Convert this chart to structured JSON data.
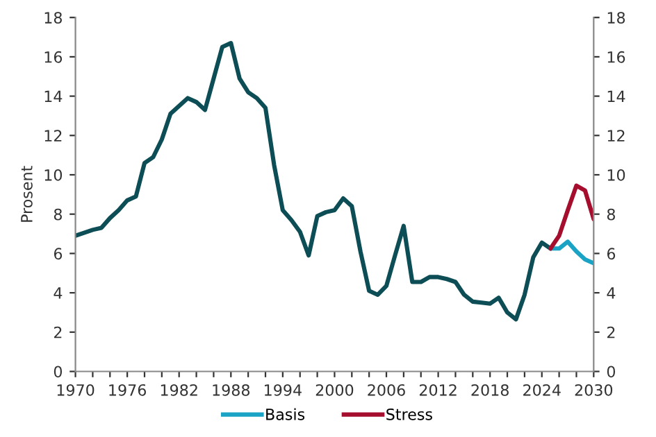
{
  "chart_data": {
    "type": "line",
    "ylabel": "Prosent",
    "series": [
      {
        "color": "#0d4d55",
        "x": [
          1970,
          1971,
          1972,
          1973,
          1974,
          1975,
          1976,
          1977,
          1978,
          1979,
          1980,
          1981,
          1982,
          1983,
          1984,
          1985,
          1986,
          1987,
          1988,
          1989,
          1990,
          1991,
          1992,
          1993,
          1994,
          1995,
          1996,
          1997,
          1998,
          1999,
          2000,
          2001,
          2002,
          2003,
          2004,
          2005,
          2006,
          2007,
          2008,
          2009,
          2010,
          2011,
          2012,
          2013,
          2014,
          2015,
          2016,
          2017,
          2018,
          2019,
          2020,
          2021,
          2022,
          2023,
          2024,
          2025
        ],
        "values": [
          6.9,
          7.05,
          7.2,
          7.3,
          7.8,
          8.2,
          8.7,
          8.9,
          10.6,
          10.9,
          11.8,
          13.1,
          13.5,
          13.9,
          13.7,
          13.3,
          14.9,
          16.5,
          16.7,
          14.9,
          14.2,
          13.9,
          13.4,
          10.5,
          8.2,
          7.7,
          7.1,
          5.9,
          7.9,
          8.1,
          8.2,
          8.8,
          8.4,
          6.1,
          4.1,
          3.9,
          4.35,
          5.9,
          7.4,
          4.55,
          4.55,
          4.8,
          4.8,
          4.7,
          4.55,
          3.9,
          3.55,
          3.5,
          3.45,
          3.75,
          3.0,
          2.65,
          3.9,
          5.8,
          6.55,
          6.25
        ]
      },
      {
        "name": "Basis",
        "color": "#1aa3c4",
        "x": [
          2025,
          2026,
          2027,
          2028,
          2029,
          2030
        ],
        "values": [
          6.25,
          6.25,
          6.6,
          6.1,
          5.7,
          5.5
        ]
      },
      {
        "name": "Stress",
        "color": "#a50f2d",
        "x": [
          2025,
          2026,
          2027,
          2028,
          2029,
          2030
        ],
        "values": [
          6.25,
          6.9,
          8.2,
          9.45,
          9.2,
          7.75
        ]
      }
    ],
    "xlim": [
      1970,
      2030
    ],
    "xticks": [
      1970,
      {
        "value": 1972,
        "label": null
      },
      {
        "value": 1974,
        "label": null
      },
      1976,
      {
        "value": 1978,
        "label": null
      },
      {
        "value": 1980,
        "label": null
      },
      1982,
      {
        "value": 1984,
        "label": null
      },
      {
        "value": 1986,
        "label": null
      },
      1988,
      {
        "value": 1990,
        "label": null
      },
      {
        "value": 1992,
        "label": null
      },
      1994,
      {
        "value": 1996,
        "label": null
      },
      {
        "value": 1998,
        "label": null
      },
      2000,
      {
        "value": 2002,
        "label": null
      },
      {
        "value": 2004,
        "label": null
      },
      2006,
      {
        "value": 2008,
        "label": null
      },
      {
        "value": 2010,
        "label": null
      },
      2012,
      {
        "value": 2014,
        "label": null
      },
      {
        "value": 2016,
        "label": null
      },
      2018,
      {
        "value": 2020,
        "label": null
      },
      {
        "value": 2022,
        "label": null
      },
      2024,
      {
        "value": 2026,
        "label": null
      },
      {
        "value": 2028,
        "label": null
      },
      2030
    ],
    "ylim": [
      0,
      18
    ],
    "yticks": [
      0,
      2,
      4,
      6,
      8,
      10,
      12,
      14,
      16,
      18
    ],
    "y2lim": [
      0,
      18
    ],
    "y2ticks": [
      0,
      2,
      4,
      6,
      8,
      10,
      12,
      14,
      16,
      18
    ],
    "grid": false,
    "legend": "bottom",
    "marker": "none",
    "line_style": "solid"
  }
}
